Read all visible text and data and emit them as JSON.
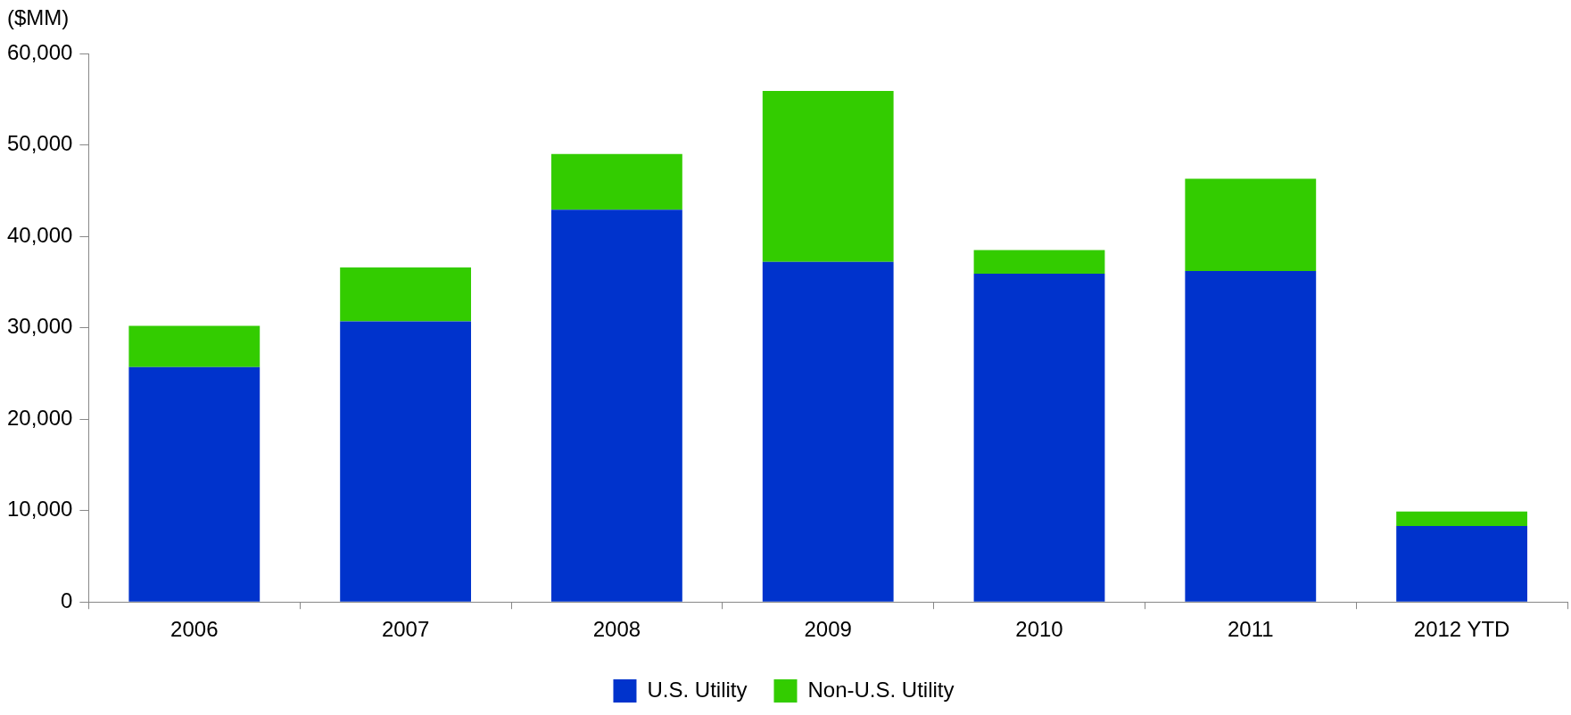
{
  "chart_data": {
    "type": "bar",
    "ylabel": "($MM)",
    "stacked": true,
    "categories": [
      "2006",
      "2007",
      "2008",
      "2009",
      "2010",
      "2011",
      "2012 YTD"
    ],
    "series": [
      {
        "name": "U.S. Utility",
        "color": "#0033cc",
        "values": [
          25700,
          30700,
          42900,
          37200,
          35900,
          36200,
          8300
        ]
      },
      {
        "name": "Non-U.S. Utility",
        "color": "#33cc00",
        "values": [
          4500,
          5900,
          6100,
          18700,
          2600,
          10100,
          1600
        ]
      }
    ],
    "ylim": [
      0,
      60000
    ],
    "yticks": [
      0,
      {
        "value": 10000,
        "label": "10,000"
      },
      {
        "value": 20000,
        "label": "20,000"
      },
      {
        "value": 30000,
        "label": "30,000"
      },
      {
        "value": 40000,
        "label": "40,000"
      },
      {
        "value": 50000,
        "label": "50,000"
      },
      {
        "value": 60000,
        "label": "60,000"
      }
    ],
    "grid": false,
    "legend": "bottom"
  }
}
